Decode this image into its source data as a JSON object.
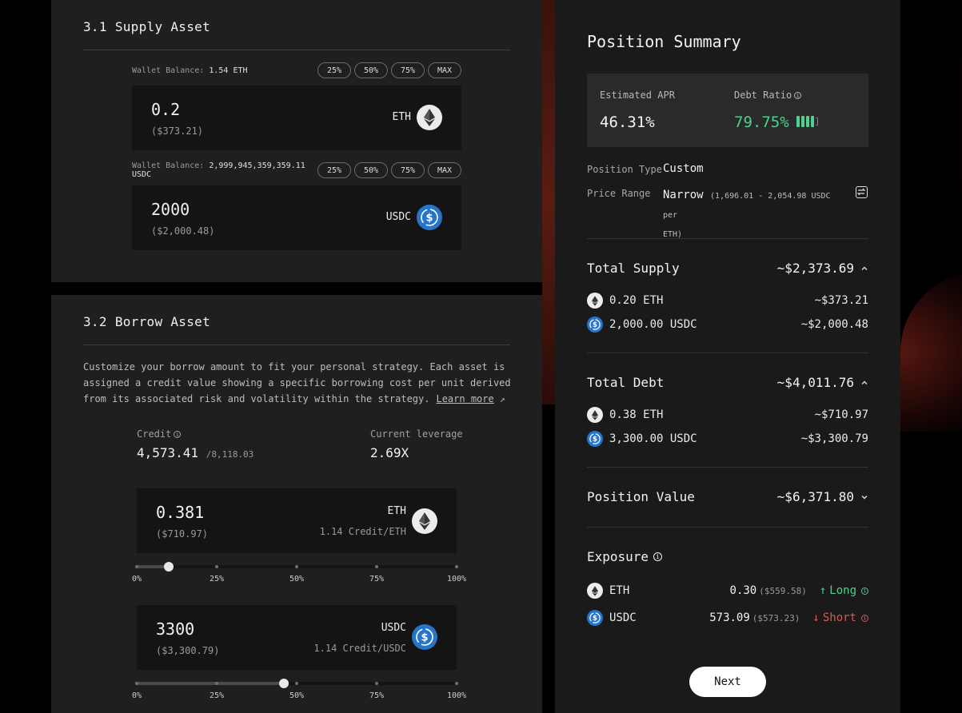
{
  "supply": {
    "number": "3.1",
    "title": "Supply Asset",
    "eth": {
      "wallet_label": "Wallet Balance:",
      "wallet_value": "1.54 ETH",
      "amount": "0.2",
      "usd": "($373.21)",
      "symbol": "ETH"
    },
    "usdc": {
      "wallet_label": "Wallet Balance:",
      "wallet_value": "2,999,945,359,359.11 USDC",
      "amount": "2000",
      "usd": "($2,000.48)",
      "symbol": "USDC"
    },
    "pct_buttons": [
      "25%",
      "50%",
      "75%",
      "MAX"
    ]
  },
  "borrow": {
    "number": "3.2",
    "title": "Borrow Asset",
    "description": "Customize your borrow amount to fit your personal strategy. Each asset is assigned a credit value showing a specific borrowing cost per unit derived from its associated risk and volatility within the strategy.",
    "learn_more": "Learn more",
    "credit_label": "Credit",
    "credit_value": "4,573.41",
    "credit_total": "/8,118.03",
    "leverage_label": "Current leverage",
    "leverage_value": "2.69X",
    "eth": {
      "amount": "0.381",
      "usd": "($710.97)",
      "symbol": "ETH",
      "credit": "1.14 Credit/ETH",
      "slider_fraction": 0.1
    },
    "usdc": {
      "amount": "3300",
      "usd": "($3,300.79)",
      "symbol": "USDC",
      "credit": "1.14 Credit/USDC",
      "slider_fraction": 0.46
    },
    "slider_labels": [
      "0%",
      "25%",
      "50%",
      "75%",
      "100%"
    ]
  },
  "summary": {
    "title": "Position Summary",
    "apr_label": "Estimated APR",
    "apr_value": "46.31%",
    "debt_label": "Debt Ratio",
    "debt_value": "79.75%",
    "position_type_label": "Position Type",
    "position_type_value": "Custom",
    "price_range_label": "Price Range",
    "price_range_value": "Narrow",
    "price_range_detail_1": "(1,696.01 - 2,054.98 USDC per",
    "price_range_detail_2": "ETH)",
    "total_supply_label": "Total Supply",
    "total_supply_value": "~$2,373.69",
    "supply_items": [
      {
        "amount": "0.20 ETH",
        "usd": "~$373.21"
      },
      {
        "amount": "2,000.00 USDC",
        "usd": "~$2,000.48"
      }
    ],
    "total_debt_label": "Total Debt",
    "total_debt_value": "~$4,011.76",
    "debt_items": [
      {
        "amount": "0.38 ETH",
        "usd": "~$710.97"
      },
      {
        "amount": "3,300.00 USDC",
        "usd": "~$3,300.79"
      }
    ],
    "position_value_label": "Position Value",
    "position_value_value": "~$6,371.80",
    "exposure_label": "Exposure",
    "exposure": [
      {
        "name": "ETH",
        "qty": "0.30",
        "usd": "($559.58)",
        "dir": "Long"
      },
      {
        "name": "USDC",
        "qty": "573.09",
        "usd": "($573.23)",
        "dir": "Short"
      }
    ],
    "next_label": "Next"
  },
  "colors": {
    "green": "#4fd18b",
    "red": "#e5534b",
    "usdc_blue": "#2775ca"
  }
}
